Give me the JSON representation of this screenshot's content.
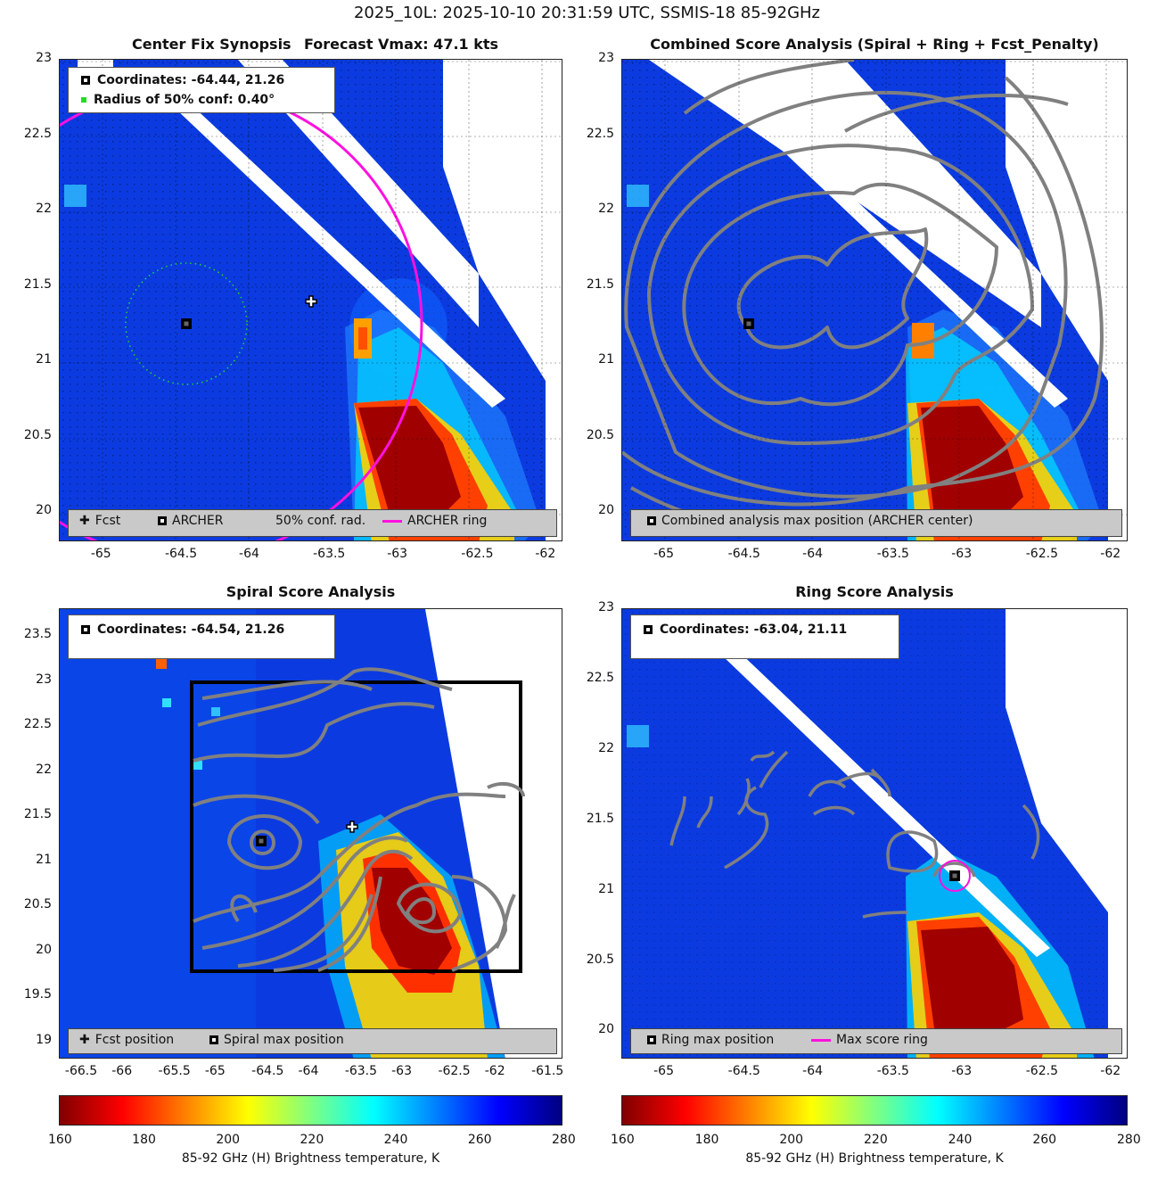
{
  "figure": {
    "suptitle": "2025_10L: 2025-10-10 20:31:59 UTC, SSMIS-18 85-92GHz",
    "colorbar_label": "85-92 GHz (H) Brightness temperature, K",
    "colorbar_ticks": [
      "160",
      "180",
      "200",
      "220",
      "240",
      "260",
      "280"
    ]
  },
  "panels": {
    "synopsis": {
      "title_left": "Center Fix Synopsis",
      "title_right": "Forecast Vmax: 47.1 kts",
      "info_coords": "Coordinates: -64.44, 21.26",
      "info_radius": "Radius of 50% conf: 0.40°",
      "legend": [
        "Fcst",
        "ARCHER",
        "50% conf. rad.",
        "ARCHER ring"
      ]
    },
    "combined": {
      "title": "Combined Score Analysis (Spiral + Ring + Fcst_Penalty)",
      "legend": [
        "Combined analysis max position (ARCHER center)"
      ]
    },
    "spiral": {
      "title": "Spiral Score Analysis",
      "info_coords": "Coordinates: -64.54, 21.26",
      "legend": [
        "Fcst position",
        "Spiral max position"
      ]
    },
    "ring": {
      "title": "Ring Score Analysis",
      "info_coords": "Coordinates: -63.04, 21.11",
      "legend": [
        "Ring max position",
        "Max score ring"
      ]
    }
  },
  "chart_data": [
    {
      "type": "heatmap",
      "name_ref": "Center Fix Synopsis",
      "xticks": [
        "-65",
        "-64.5",
        "-64",
        "-63.5",
        "-63",
        "-62.5",
        "-62"
      ],
      "yticks": [
        "23",
        "22.5",
        "22",
        "21.5",
        "21",
        "20.5",
        "20"
      ],
      "xlim": [
        -65.3,
        -61.9
      ],
      "ylim": [
        19.8,
        23.0
      ],
      "points": {
        "archer_center": [
          -64.44,
          21.26
        ],
        "fcst": [
          -63.58,
          21.41
        ]
      },
      "conf_radius_deg": 0.4,
      "archer_ring_radius_deg": 1.6
    },
    {
      "type": "heatmap",
      "name_ref": "Combined Score Analysis",
      "xticks": [
        "-65",
        "-64.5",
        "-64",
        "-63.5",
        "-63",
        "-62.5",
        "-62"
      ],
      "yticks": [
        "23",
        "22.5",
        "22",
        "21.5",
        "21",
        "20.5",
        "20"
      ],
      "xlim": [
        -65.3,
        -61.9
      ],
      "ylim": [
        19.8,
        23.0
      ],
      "points": {
        "archer_center": [
          -64.44,
          21.26
        ]
      }
    },
    {
      "type": "heatmap",
      "name_ref": "Spiral Score Analysis",
      "xticks": [
        "-66.5",
        "-66",
        "-65.5",
        "-65",
        "-64.5",
        "-64",
        "-63.5",
        "-63",
        "-62.5",
        "-62",
        "-61.5"
      ],
      "yticks": [
        "23.5",
        "23",
        "22.5",
        "22",
        "21.5",
        "21",
        "20.5",
        "20",
        "19.5",
        "19"
      ],
      "xlim": [
        -66.7,
        -61.3
      ],
      "ylim": [
        18.8,
        23.8
      ],
      "points": {
        "spiral_max": [
          -64.54,
          21.26
        ],
        "fcst": [
          -63.58,
          21.41
        ]
      },
      "analysis_box": {
        "x": [
          -65.3,
          -61.9
        ],
        "y": [
          19.8,
          23.0
        ]
      }
    },
    {
      "type": "heatmap",
      "name_ref": "Ring Score Analysis",
      "xticks": [
        "-65",
        "-64.5",
        "-64",
        "-63.5",
        "-63",
        "-62.5",
        "-62"
      ],
      "yticks": [
        "23",
        "22.5",
        "22",
        "21.5",
        "21",
        "20.5",
        "20"
      ],
      "xlim": [
        -65.3,
        -61.9
      ],
      "ylim": [
        19.8,
        23.0
      ],
      "points": {
        "ring_max": [
          -63.04,
          21.11
        ]
      }
    }
  ]
}
